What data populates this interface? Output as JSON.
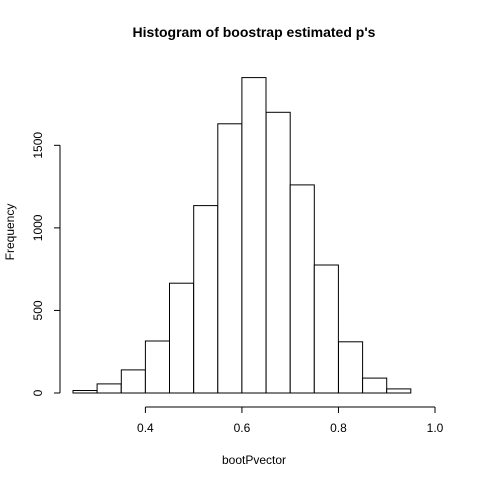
{
  "chart_data": {
    "type": "bar",
    "title": "Histogram of boostrap estimated p's",
    "xlabel": "bootPvector",
    "ylabel": "Frequency",
    "bin_edges": [
      0.25,
      0.3,
      0.35,
      0.4,
      0.45,
      0.5,
      0.55,
      0.6,
      0.65,
      0.7,
      0.75,
      0.8,
      0.85,
      0.9,
      0.95
    ],
    "values": [
      15,
      55,
      140,
      315,
      665,
      1135,
      1630,
      1910,
      1700,
      1260,
      775,
      310,
      90,
      25
    ],
    "xlim": [
      0.25,
      1.0
    ],
    "ylim": [
      0,
      1950
    ],
    "x_ticks": [
      "0.4",
      "0.6",
      "0.8",
      "1.0"
    ],
    "y_ticks": [
      "0",
      "500",
      "1000",
      "1500"
    ],
    "grid": false
  }
}
